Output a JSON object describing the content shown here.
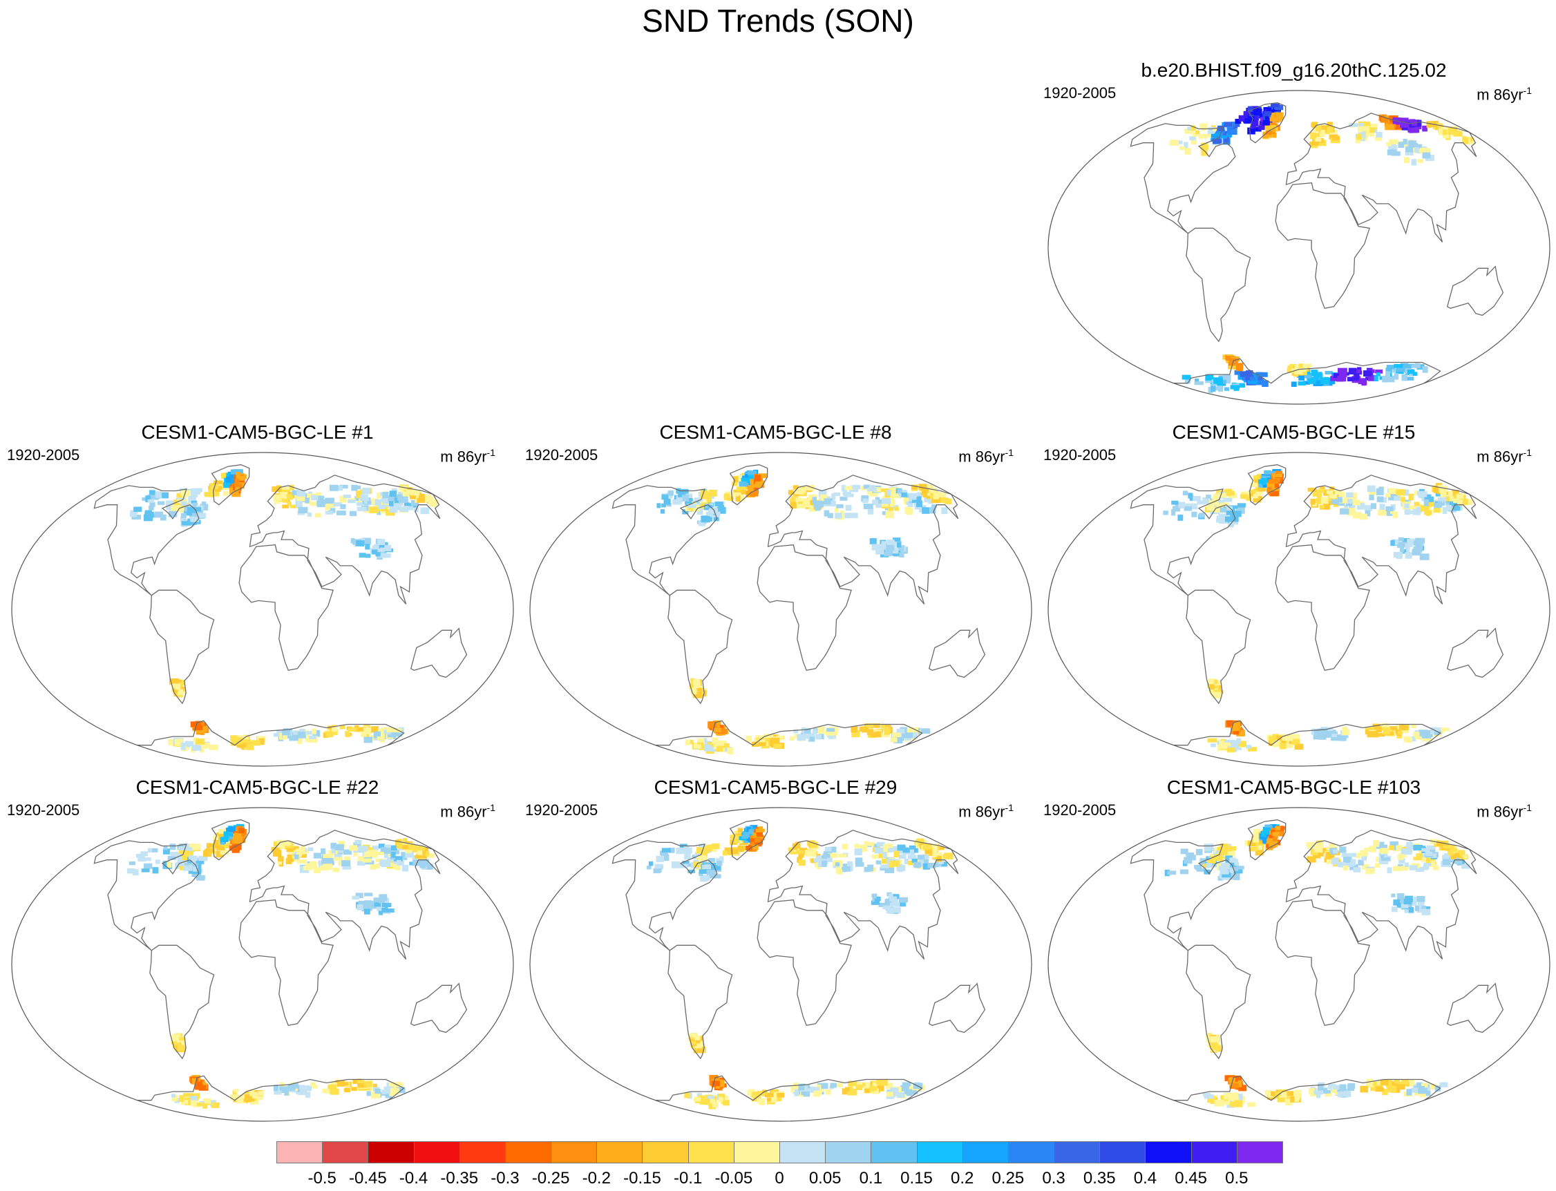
{
  "title": "SND Trends (SON)",
  "panels": [
    {
      "title": "b.e20.BHIST.f09_g16.20thC.125.02",
      "period": "1920-2005",
      "units_base": "m 86yr",
      "units_exp": "-1",
      "intensity": "high"
    },
    {
      "title": "CESM1-CAM5-BGC-LE #1",
      "period": "1920-2005",
      "units_base": "m 86yr",
      "units_exp": "-1",
      "intensity": "low"
    },
    {
      "title": "CESM1-CAM5-BGC-LE #8",
      "period": "1920-2005",
      "units_base": "m 86yr",
      "units_exp": "-1",
      "intensity": "low"
    },
    {
      "title": "CESM1-CAM5-BGC-LE #15",
      "period": "1920-2005",
      "units_base": "m 86yr",
      "units_exp": "-1",
      "intensity": "low"
    },
    {
      "title": "CESM1-CAM5-BGC-LE #22",
      "period": "1920-2005",
      "units_base": "m 86yr",
      "units_exp": "-1",
      "intensity": "low"
    },
    {
      "title": "CESM1-CAM5-BGC-LE #29",
      "period": "1920-2005",
      "units_base": "m 86yr",
      "units_exp": "-1",
      "intensity": "low"
    },
    {
      "title": "CESM1-CAM5-BGC-LE #103",
      "period": "1920-2005",
      "units_base": "m 86yr",
      "units_exp": "-1",
      "intensity": "low"
    }
  ],
  "colorbar": {
    "labels": [
      "-0.5",
      "-0.45",
      "-0.4",
      "-0.35",
      "-0.3",
      "-0.25",
      "-0.2",
      "-0.15",
      "-0.1",
      "-0.05",
      "0",
      "0.05",
      "0.1",
      "0.15",
      "0.2",
      "0.25",
      "0.3",
      "0.35",
      "0.4",
      "0.45",
      "0.5"
    ],
    "colors": [
      "#fbb3b3",
      "#e04848",
      "#cc0000",
      "#f01010",
      "#ff3a10",
      "#ff6b00",
      "#ff8f10",
      "#ffad1a",
      "#ffcc33",
      "#ffe14d",
      "#fff59a",
      "#c4e4f6",
      "#9fd3ef",
      "#5fc2f0",
      "#15c2ff",
      "#15a5ff",
      "#2a86f5",
      "#3966e6",
      "#2f4be6",
      "#0e10f5",
      "#3f1cf0",
      "#7f28f0"
    ]
  }
}
